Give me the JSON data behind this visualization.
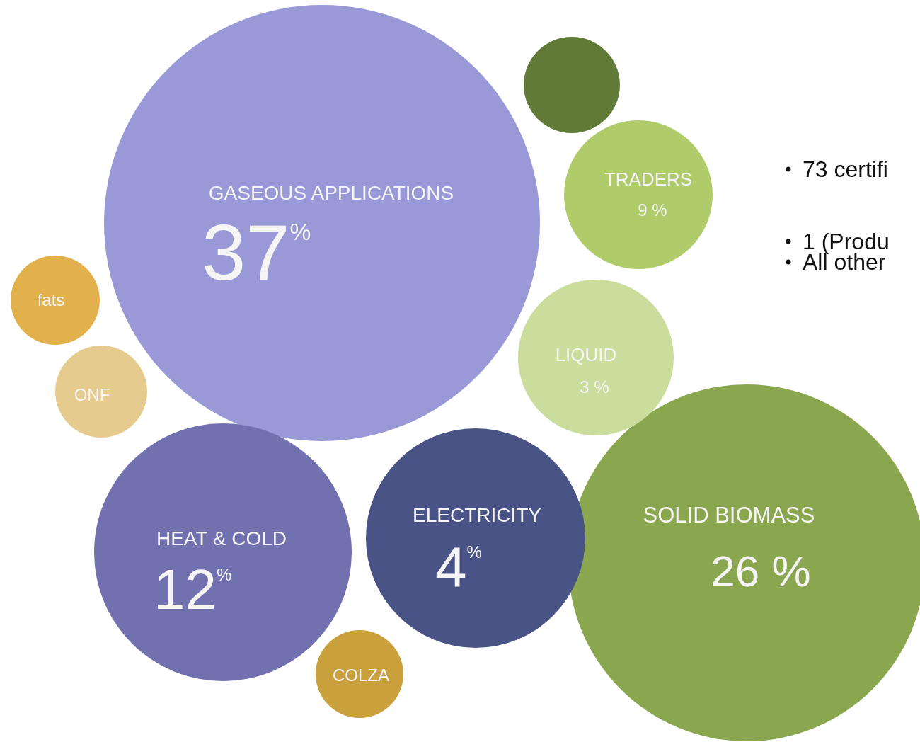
{
  "chart_data": {
    "type": "other",
    "categories": [
      "GASEOUS APPLICATIONS",
      "SOLID BIOMASS",
      "HEAT & COLD",
      "ELECTRICITY",
      "TRADERS",
      "LIQUID",
      "fats",
      "ONF",
      "COLZA",
      null
    ],
    "values": [
      37,
      26,
      12,
      4,
      9,
      3,
      null,
      null,
      null,
      null
    ],
    "value_labels": [
      "37$^{%}$",
      "26 %",
      "12$^{%}$",
      "4$^{%}$",
      "9 %",
      "3 %",
      null,
      null,
      null,
      null
    ],
    "colors": [
      "#9999d8",
      "#8aa64f",
      "#7271b0",
      "#4a5385",
      "#b0cc6a",
      "#cadd9c",
      "#e2b14c",
      "#e6cb8e",
      "#c9a03c",
      "#617a37"
    ],
    "annotations": [
      "73 certifi",
      "1 (Produ",
      "All other"
    ]
  }
}
